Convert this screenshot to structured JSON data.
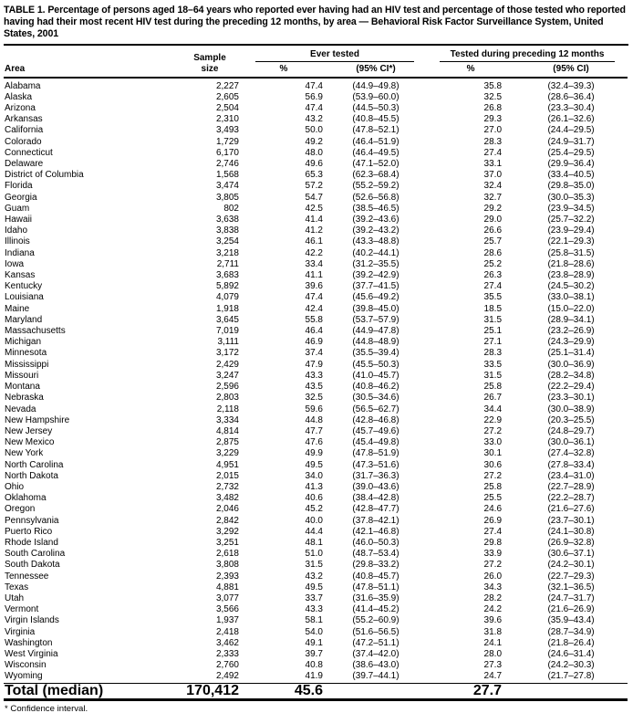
{
  "title": "TABLE 1. Percentage of persons aged 18–64 years who reported ever having had an HIV test and percentage of those tested who reported having had their most recent HIV test during the preceding 12 months, by area — Behavioral Risk Factor Surveillance System, United States, 2001",
  "footnote": "* Confidence interval.",
  "table": {
    "header": {
      "area": "Area",
      "sample_line1": "Sample",
      "sample_line2": "size",
      "group_ever": "Ever tested",
      "group_recent": "Tested during preceding 12 months",
      "pct_ever": "%",
      "ci_ever": "(95% CI*)",
      "pct_recent": "%",
      "ci_recent": "(95% CI)"
    },
    "rows": [
      [
        "Alabama",
        "2,227",
        "47.4",
        "(44.9–49.8)",
        "35.8",
        "(32.4–39.3)"
      ],
      [
        "Alaska",
        "2,605",
        "56.9",
        "(53.9–60.0)",
        "32.5",
        "(28.6–36.4)"
      ],
      [
        "Arizona",
        "2,504",
        "47.4",
        "(44.5–50.3)",
        "26.8",
        "(23.3–30.4)"
      ],
      [
        "Arkansas",
        "2,310",
        "43.2",
        "(40.8–45.5)",
        "29.3",
        "(26.1–32.6)"
      ],
      [
        "California",
        "3,493",
        "50.0",
        "(47.8–52.1)",
        "27.0",
        "(24.4–29.5)"
      ],
      [
        "Colorado",
        "1,729",
        "49.2",
        "(46.4–51.9)",
        "28.3",
        "(24.9–31.7)"
      ],
      [
        "Connecticut",
        "6,170",
        "48.0",
        "(46.4–49.5)",
        "27.4",
        "(25.4–29.5)"
      ],
      [
        "Delaware",
        "2,746",
        "49.6",
        "(47.1–52.0)",
        "33.1",
        "(29.9–36.4)"
      ],
      [
        "District of Columbia",
        "1,568",
        "65.3",
        "(62.3–68.4)",
        "37.0",
        "(33.4–40.5)"
      ],
      [
        "Florida",
        "3,474",
        "57.2",
        "(55.2–59.2)",
        "32.4",
        "(29.8–35.0)"
      ],
      [
        "Georgia",
        "3,805",
        "54.7",
        "(52.6–56.8)",
        "32.7",
        "(30.0–35.3)"
      ],
      [
        "Guam",
        "802",
        "42.5",
        "(38.5–46.5)",
        "29.2",
        "(23.9–34.5)"
      ],
      [
        "Hawaii",
        "3,638",
        "41.4",
        "(39.2–43.6)",
        "29.0",
        "(25.7–32.2)"
      ],
      [
        "Idaho",
        "3,838",
        "41.2",
        "(39.2–43.2)",
        "26.6",
        "(23.9–29.4)"
      ],
      [
        "Illinois",
        "3,254",
        "46.1",
        "(43.3–48.8)",
        "25.7",
        "(22.1–29.3)"
      ],
      [
        "Indiana",
        "3,218",
        "42.2",
        "(40.2–44.1)",
        "28.6",
        "(25.8–31.5)"
      ],
      [
        "Iowa",
        "2,711",
        "33.4",
        "(31.2–35.5)",
        "25.2",
        "(21.8–28.6)"
      ],
      [
        "Kansas",
        "3,683",
        "41.1",
        "(39.2–42.9)",
        "26.3",
        "(23.8–28.9)"
      ],
      [
        "Kentucky",
        "5,892",
        "39.6",
        "(37.7–41.5)",
        "27.4",
        "(24.5–30.2)"
      ],
      [
        "Louisiana",
        "4,079",
        "47.4",
        "(45.6–49.2)",
        "35.5",
        "(33.0–38.1)"
      ],
      [
        "Maine",
        "1,918",
        "42.4",
        "(39.8–45.0)",
        "18.5",
        "(15.0–22.0)"
      ],
      [
        "Maryland",
        "3,645",
        "55.8",
        "(53.7–57.9)",
        "31.5",
        "(28.9–34.1)"
      ],
      [
        "Massachusetts",
        "7,019",
        "46.4",
        "(44.9–47.8)",
        "25.1",
        "(23.2–26.9)"
      ],
      [
        "Michigan",
        "3,111",
        "46.9",
        "(44.8–48.9)",
        "27.1",
        "(24.3–29.9)"
      ],
      [
        "Minnesota",
        "3,172",
        "37.4",
        "(35.5–39.4)",
        "28.3",
        "(25.1–31.4)"
      ],
      [
        "Mississippi",
        "2,429",
        "47.9",
        "(45.5–50.3)",
        "33.5",
        "(30.0–36.9)"
      ],
      [
        "Missouri",
        "3,247",
        "43.3",
        "(41.0–45.7)",
        "31.5",
        "(28.2–34.8)"
      ],
      [
        "Montana",
        "2,596",
        "43.5",
        "(40.8–46.2)",
        "25.8",
        "(22.2–29.4)"
      ],
      [
        "Nebraska",
        "2,803",
        "32.5",
        "(30.5–34.6)",
        "26.7",
        "(23.3–30.1)"
      ],
      [
        "Nevada",
        "2,118",
        "59.6",
        "(56.5–62.7)",
        "34.4",
        "(30.0–38.9)"
      ],
      [
        "New Hampshire",
        "3,334",
        "44.8",
        "(42.8–46.8)",
        "22.9",
        "(20.3–25.5)"
      ],
      [
        "New Jersey",
        "4,814",
        "47.7",
        "(45.7–49.6)",
        "27.2",
        "(24.8–29.7)"
      ],
      [
        "New Mexico",
        "2,875",
        "47.6",
        "(45.4–49.8)",
        "33.0",
        "(30.0–36.1)"
      ],
      [
        "New York",
        "3,229",
        "49.9",
        "(47.8–51.9)",
        "30.1",
        "(27.4–32.8)"
      ],
      [
        "North Carolina",
        "4,951",
        "49.5",
        "(47.3–51.6)",
        "30.6",
        "(27.8–33.4)"
      ],
      [
        "North Dakota",
        "2,015",
        "34.0",
        "(31.7–36.3)",
        "27.2",
        "(23.4–31.0)"
      ],
      [
        "Ohio",
        "2,732",
        "41.3",
        "(39.0–43.6)",
        "25.8",
        "(22.7–28.9)"
      ],
      [
        "Oklahoma",
        "3,482",
        "40.6",
        "(38.4–42.8)",
        "25.5",
        "(22.2–28.7)"
      ],
      [
        "Oregon",
        "2,046",
        "45.2",
        "(42.8–47.7)",
        "24.6",
        "(21.6–27.6)"
      ],
      [
        "Pennsylvania",
        "2,842",
        "40.0",
        "(37.8–42.1)",
        "26.9",
        "(23.7–30.1)"
      ],
      [
        "Puerto Rico",
        "3,292",
        "44.4",
        "(42.1–46.8)",
        "27.4",
        "(24.1–30.8)"
      ],
      [
        "Rhode Island",
        "3,251",
        "48.1",
        "(46.0–50.3)",
        "29.8",
        "(26.9–32.8)"
      ],
      [
        "South Carolina",
        "2,618",
        "51.0",
        "(48.7–53.4)",
        "33.9",
        "(30.6–37.1)"
      ],
      [
        "South Dakota",
        "3,808",
        "31.5",
        "(29.8–33.2)",
        "27.2",
        "(24.2–30.1)"
      ],
      [
        "Tennessee",
        "2,393",
        "43.2",
        "(40.8–45.7)",
        "26.0",
        "(22.7–29.3)"
      ],
      [
        "Texas",
        "4,881",
        "49.5",
        "(47.8–51.1)",
        "34.3",
        "(32.1–36.5)"
      ],
      [
        "Utah",
        "3,077",
        "33.7",
        "(31.6–35.9)",
        "28.2",
        "(24.7–31.7)"
      ],
      [
        "Vermont",
        "3,566",
        "43.3",
        "(41.4–45.2)",
        "24.2",
        "(21.6–26.9)"
      ],
      [
        "Virgin Islands",
        "1,937",
        "58.1",
        "(55.2–60.9)",
        "39.6",
        "(35.9–43.4)"
      ],
      [
        "Virginia",
        "2,418",
        "54.0",
        "(51.6–56.5)",
        "31.8",
        "(28.7–34.9)"
      ],
      [
        "Washington",
        "3,462",
        "49.1",
        "(47.2–51.1)",
        "24.1",
        "(21.8–26.4)"
      ],
      [
        "West Virginia",
        "2,333",
        "39.7",
        "(37.4–42.0)",
        "28.0",
        "(24.6–31.4)"
      ],
      [
        "Wisconsin",
        "2,760",
        "40.8",
        "(38.6–43.0)",
        "27.3",
        "(24.2–30.3)"
      ],
      [
        "Wyoming",
        "2,492",
        "41.9",
        "(39.7–44.1)",
        "24.7",
        "(21.7–27.8)"
      ]
    ],
    "total": [
      "Total (median)",
      "170,412",
      "45.6",
      "",
      "27.7",
      ""
    ]
  }
}
